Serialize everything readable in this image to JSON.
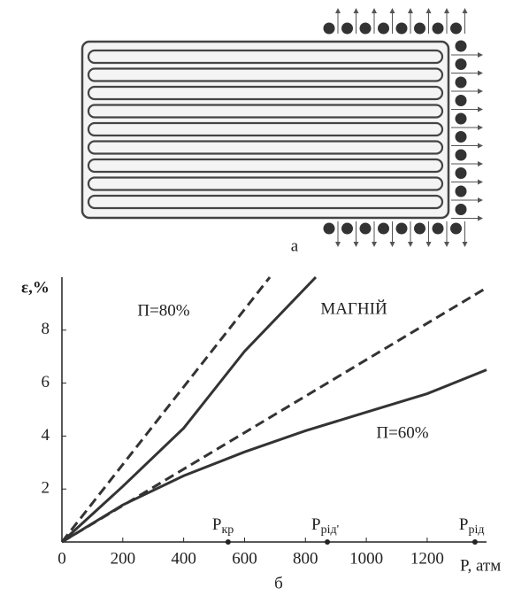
{
  "diagram": {
    "label": "а"
  },
  "chart_data": {
    "type": "line",
    "panel_label": "б",
    "y_label": "ε,%",
    "x_label": "P, атм",
    "annotations": [
      "П=80%",
      "МАГНІЙ",
      "П=60%"
    ],
    "xlim": [
      0,
      1395
    ],
    "ylim": [
      0,
      10
    ],
    "xticks": [
      0,
      200,
      400,
      600,
      800,
      1000,
      1200
    ],
    "yticks": [
      2,
      4,
      6,
      8
    ],
    "series": [
      {
        "color": "#333333",
        "dash": true,
        "x": [
          0,
          683
        ],
        "values": [
          0,
          10
        ]
      },
      {
        "color": "#333333",
        "dash": false,
        "x": [
          0,
          200,
          400,
          600,
          834
        ],
        "values": [
          0,
          2.1,
          4.3,
          7.2,
          10
        ]
      },
      {
        "color": "#333333",
        "dash": true,
        "x": [
          0,
          1395
        ],
        "values": [
          0,
          9.6
        ]
      },
      {
        "color": "#333333",
        "dash": false,
        "x": [
          0,
          200,
          400,
          600,
          800,
          1000,
          1200,
          1395
        ],
        "values": [
          0,
          1.4,
          2.5,
          3.4,
          4.2,
          4.9,
          5.6,
          6.5
        ]
      }
    ],
    "markers": [
      {
        "label": "P",
        "subscript": "кр",
        "x": 546
      },
      {
        "label": "P",
        "subscript": "рід'",
        "x": 872
      },
      {
        "label": "P",
        "subscript": "рід",
        "x": 1357
      }
    ]
  }
}
